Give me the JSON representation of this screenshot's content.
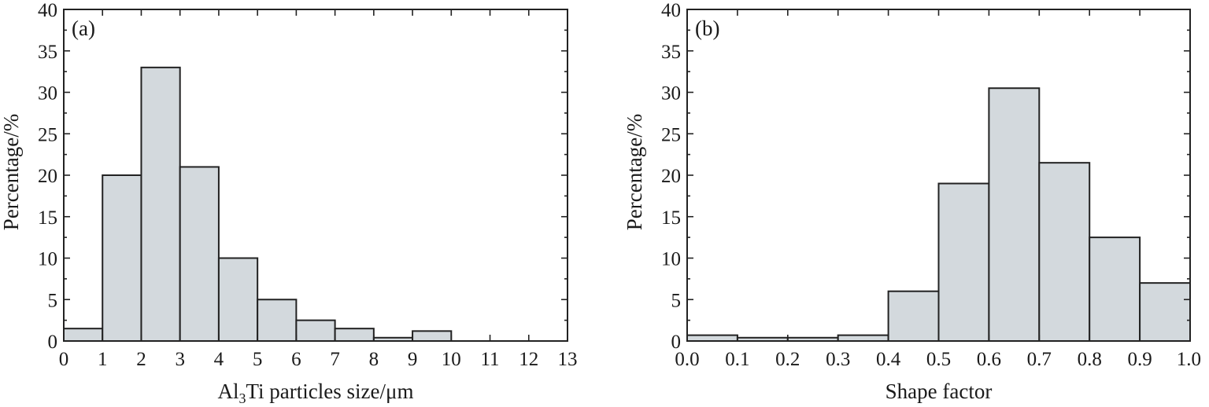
{
  "chart_data": [
    {
      "type": "bar",
      "panel_label": "(a)",
      "xlabel_pre": "Al",
      "xlabel_sub": "3",
      "xlabel_post": "Ti particles size/μm",
      "ylabel": "Percentage/%",
      "xlim": [
        0,
        13
      ],
      "ylim": [
        0,
        40
      ],
      "xticks": [
        "0",
        "1",
        "2",
        "3",
        "4",
        "5",
        "6",
        "7",
        "8",
        "9",
        "10",
        "11",
        "12",
        "13"
      ],
      "yticks": [
        "0",
        "5",
        "10",
        "15",
        "20",
        "25",
        "30",
        "35",
        "40"
      ],
      "bins": [
        [
          0,
          1
        ],
        [
          1,
          2
        ],
        [
          2,
          3
        ],
        [
          3,
          4
        ],
        [
          4,
          5
        ],
        [
          5,
          6
        ],
        [
          6,
          7
        ],
        [
          7,
          8
        ],
        [
          8,
          9
        ],
        [
          9,
          10
        ]
      ],
      "values": [
        1.5,
        20,
        33,
        21,
        10,
        5,
        2.5,
        1.5,
        0.4,
        1.2
      ]
    },
    {
      "type": "bar",
      "panel_label": "(b)",
      "xlabel": "Shape factor",
      "ylabel": "Percentage/%",
      "xlim": [
        0,
        1.0
      ],
      "ylim": [
        0,
        40
      ],
      "xticks": [
        "0.0",
        "0.1",
        "0.2",
        "0.3",
        "0.4",
        "0.5",
        "0.6",
        "0.7",
        "0.8",
        "0.9",
        "1.0"
      ],
      "yticks": [
        "0",
        "5",
        "10",
        "15",
        "20",
        "25",
        "30",
        "35",
        "40"
      ],
      "bins": [
        [
          0,
          0.1
        ],
        [
          0.1,
          0.2
        ],
        [
          0.2,
          0.3
        ],
        [
          0.3,
          0.4
        ],
        [
          0.4,
          0.5
        ],
        [
          0.5,
          0.6
        ],
        [
          0.6,
          0.7
        ],
        [
          0.7,
          0.8
        ],
        [
          0.8,
          0.9
        ],
        [
          0.9,
          1.0
        ]
      ],
      "values": [
        0.7,
        0.4,
        0.4,
        0.7,
        6,
        19,
        30.5,
        21.5,
        12.5,
        7
      ]
    }
  ]
}
